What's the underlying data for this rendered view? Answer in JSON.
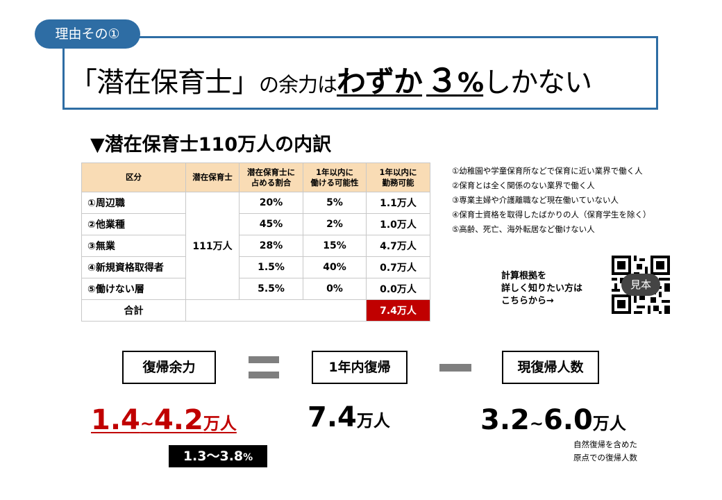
{
  "header": {
    "tag": "理由その①",
    "headline": {
      "part1": "「潜在保育士」",
      "part2": "の余力は",
      "part3": "わずか",
      "number": "３",
      "percent": "%",
      "part4": "しかない"
    }
  },
  "subtitle": "▼潜在保育士110万人の内訳",
  "table": {
    "headers": [
      "区分",
      "潜在保育士",
      "潜在保育士に占める割合",
      "1年以内に働ける可能性",
      "1年以内に勤務可能"
    ],
    "header_lines": [
      [
        "区分"
      ],
      [
        "潜在保育士"
      ],
      [
        "潜在保育士に",
        "占める割合"
      ],
      [
        "1年以内に",
        "働ける可能性"
      ],
      [
        "1年以内に",
        "勤務可能"
      ]
    ],
    "total_potential": "111万人",
    "rows": [
      {
        "label": "①周辺職",
        "share": "20%",
        "possibility": "5%",
        "available": "1.1万人"
      },
      {
        "label": "②他業種",
        "share": "45%",
        "possibility": "2%",
        "available": "1.0万人"
      },
      {
        "label": "③無業",
        "share": "28%",
        "possibility": "15%",
        "available": "4.7万人"
      },
      {
        "label": "④新規資格取得者",
        "share": "1.5%",
        "possibility": "40%",
        "available": "0.7万人"
      },
      {
        "label": "⑤働けない層",
        "share": "5.5%",
        "possibility": "0%",
        "available": "0.0万人"
      }
    ],
    "total_row": {
      "label": "合計",
      "available": "7.4万人"
    }
  },
  "notes": [
    "①幼稚園や学童保育所などで保育に近い業界で働く人",
    "②保育とは全く関係のない業界で働く人",
    "③専業主婦や介護離職など現在働いていない人",
    "④保育士資格を取得したばかりの人（保育学生を除く）",
    "⑤高齢、死亡、海外転居など働けない人"
  ],
  "qr": {
    "text_lines": [
      "計算根拠を",
      "詳しく知りたい方は",
      "こちらから→"
    ],
    "badge": "見本"
  },
  "equation": {
    "box1": "復帰余力",
    "box2": "1年内復帰",
    "box3": "現復帰人数",
    "value1": {
      "low": "1.4",
      "tilde": "~",
      "high": "4.2",
      "unit": "万人"
    },
    "value1_pct": {
      "text": "1.3〜3.8",
      "unit": "%"
    },
    "value2": {
      "number": "7.4",
      "unit": "万人"
    },
    "value3": {
      "low": "3.2",
      "tilde": "~",
      "high": "6.0",
      "unit": "万人"
    },
    "footnote": [
      "自然復帰を含めた",
      "原点での復帰人数"
    ]
  },
  "colors": {
    "accent_blue": "#2e6da4",
    "header_fill": "#f9dcb5",
    "highlight_red": "#c00000",
    "operator_gray": "#7f7f7f"
  }
}
